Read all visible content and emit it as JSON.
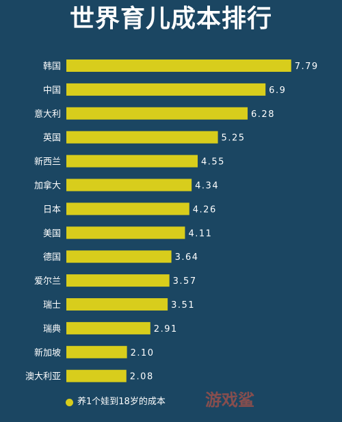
{
  "chart_data": {
    "type": "bar",
    "orientation": "horizontal",
    "title": "世界育儿成本排行",
    "categories": [
      "韩国",
      "中国",
      "意大利",
      "英国",
      "新西兰",
      "加拿大",
      "日本",
      "美国",
      "德国",
      "爱尔兰",
      "瑞士",
      "瑞典",
      "新加坡",
      "澳大利亚"
    ],
    "values": [
      7.79,
      6.9,
      6.28,
      5.25,
      4.55,
      4.34,
      4.26,
      4.11,
      3.64,
      3.57,
      3.51,
      2.91,
      2.1,
      2.08
    ],
    "value_labels": [
      "7.79",
      "6.9",
      "6.28",
      "5.25",
      "4.55",
      "4.34",
      "4.26",
      "4.11",
      "3.64",
      "3.57",
      "3.51",
      "2.91",
      "2.10",
      "2.08"
    ],
    "legend": {
      "label": "养1个娃到18岁的成本",
      "position": "bottom"
    },
    "bar_color": "#d8cd1c",
    "background_color": "#1b4662",
    "grid": false
  },
  "watermark": {
    "text": "游戏鲨"
  }
}
